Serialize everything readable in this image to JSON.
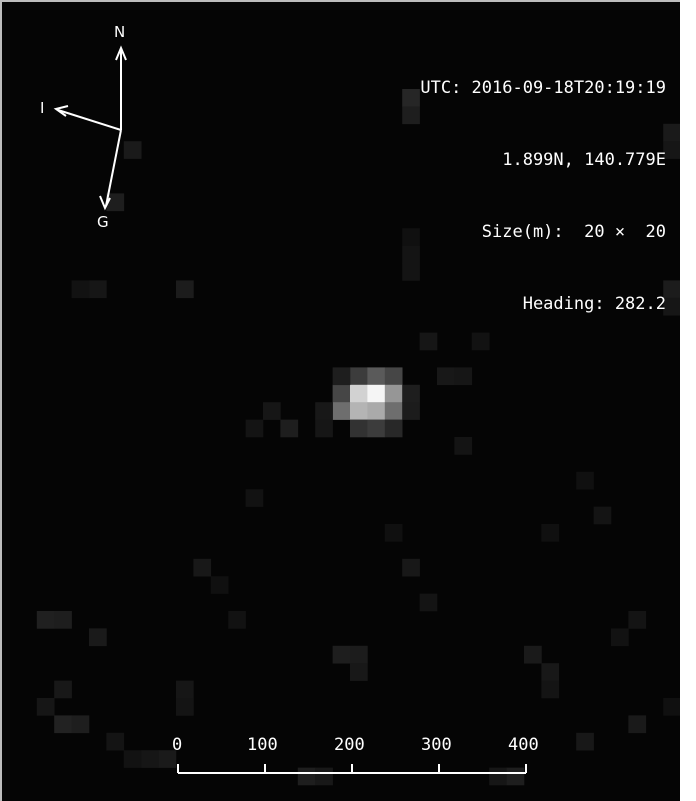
{
  "image": {
    "background_color": "#050505",
    "annotation_color": "#ffffff"
  },
  "readout": {
    "utc": "UTC: 2016-09-18T20:19:19",
    "coords": "1.899N, 140.779E",
    "size": "Size(m):  20 ×  20",
    "heading": "Heading: 282.2"
  },
  "compass": {
    "north_label": "N",
    "i_label": "I",
    "g_label": "G"
  },
  "scale_bar": {
    "ticks": [
      "0",
      "100",
      "200",
      "300",
      "400"
    ]
  }
}
